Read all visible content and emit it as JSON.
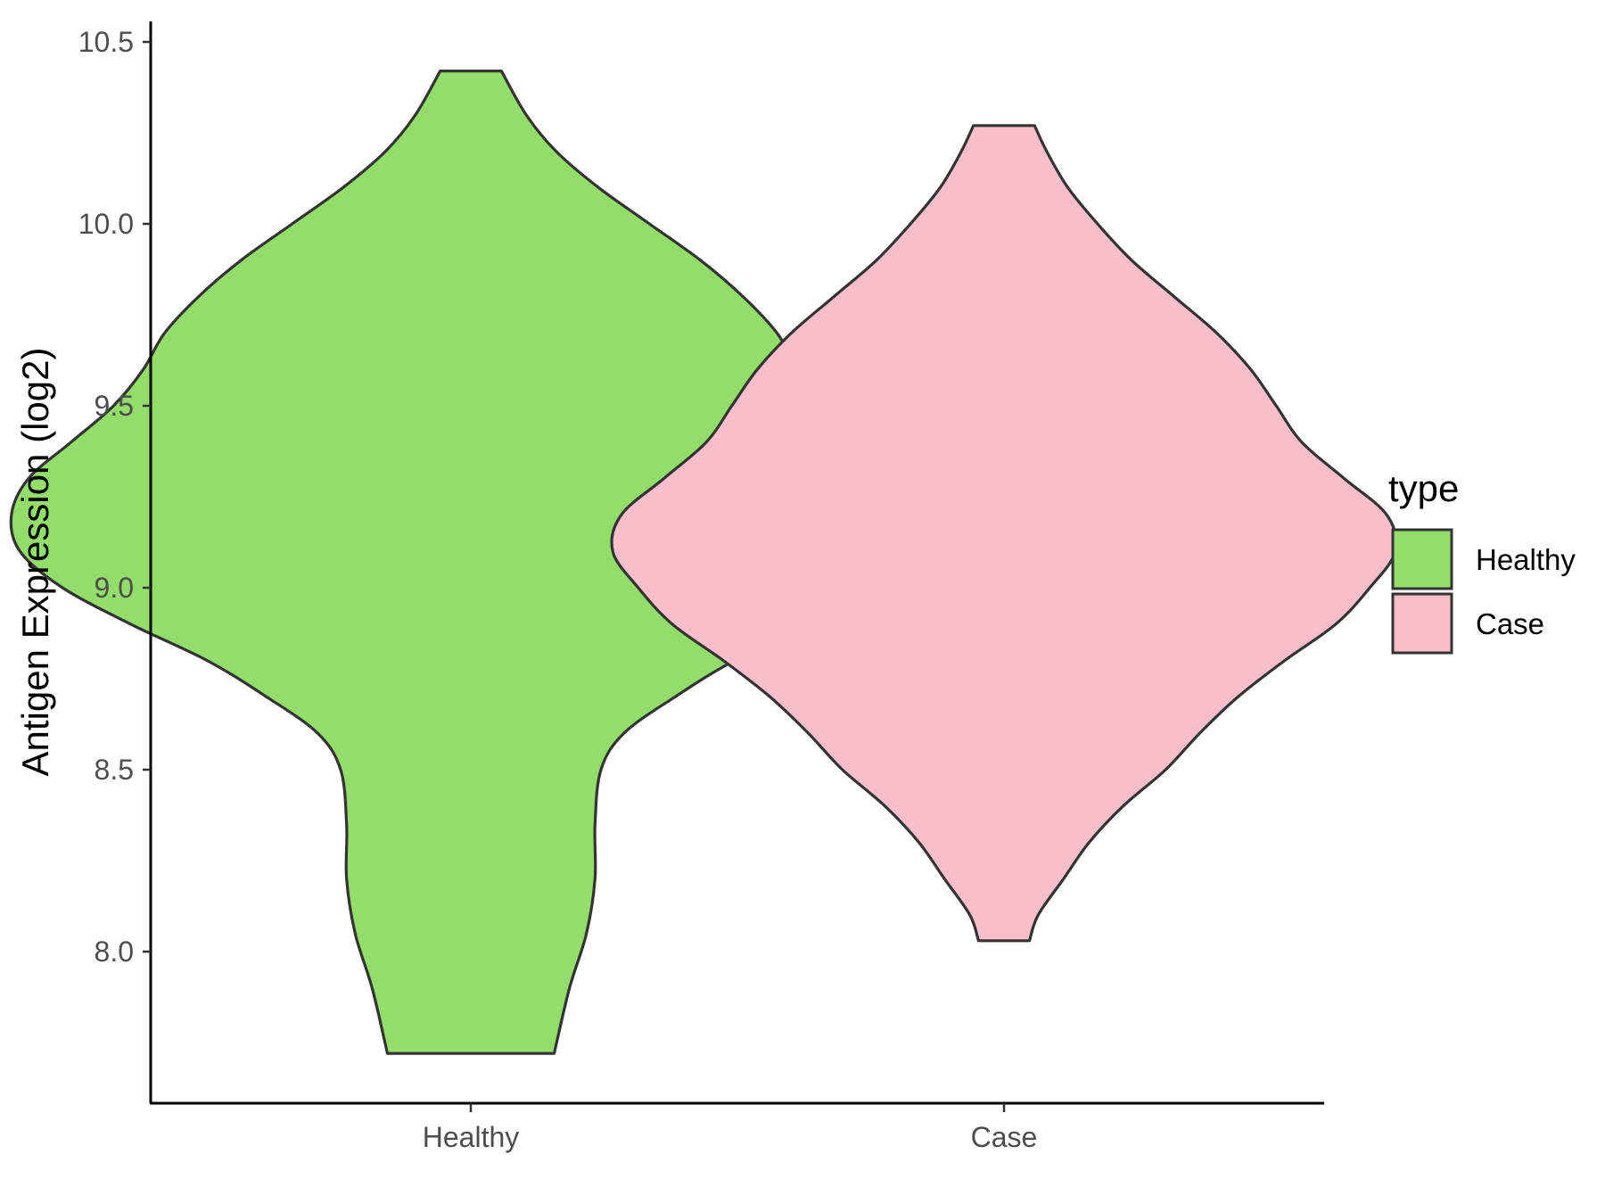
{
  "chart_data": {
    "type": "violin",
    "title": "",
    "xlabel": "",
    "ylabel": "Antigen Expression (log2)",
    "ylim": [
      7.6,
      10.55
    ],
    "yticks": [
      "8.0",
      "8.5",
      "9.0",
      "9.5",
      "10.0",
      "10.5"
    ],
    "grid": false,
    "legend": {
      "title": "type",
      "position": "right",
      "entries": [
        "Healthy",
        "Case"
      ]
    },
    "categories": [
      "Healthy",
      "Case"
    ],
    "series": [
      {
        "name": "Healthy",
        "color": "#93DD6A",
        "min": 7.72,
        "max": 10.42,
        "density_profile": [
          [
            7.72,
            0.098
          ],
          [
            7.9,
            0.116
          ],
          [
            8.05,
            0.136
          ],
          [
            8.2,
            0.146
          ],
          [
            8.35,
            0.146
          ],
          [
            8.5,
            0.153
          ],
          [
            8.6,
            0.18
          ],
          [
            8.7,
            0.24
          ],
          [
            8.8,
            0.31
          ],
          [
            8.9,
            0.4
          ],
          [
            9.0,
            0.48
          ],
          [
            9.1,
            0.53
          ],
          [
            9.2,
            0.54
          ],
          [
            9.3,
            0.52
          ],
          [
            9.4,
            0.47
          ],
          [
            9.5,
            0.42
          ],
          [
            9.6,
            0.385
          ],
          [
            9.7,
            0.36
          ],
          [
            9.8,
            0.32
          ],
          [
            9.9,
            0.27
          ],
          [
            10.0,
            0.21
          ],
          [
            10.1,
            0.15
          ],
          [
            10.2,
            0.1
          ],
          [
            10.3,
            0.065
          ],
          [
            10.42,
            0.036
          ]
        ]
      },
      {
        "name": "Case",
        "color": "#F8BFCB",
        "min": 8.03,
        "max": 10.27,
        "density_profile": [
          [
            8.03,
            0.03
          ],
          [
            8.1,
            0.04
          ],
          [
            8.2,
            0.07
          ],
          [
            8.3,
            0.1
          ],
          [
            8.4,
            0.14
          ],
          [
            8.5,
            0.19
          ],
          [
            8.6,
            0.23
          ],
          [
            8.7,
            0.275
          ],
          [
            8.8,
            0.33
          ],
          [
            8.9,
            0.39
          ],
          [
            9.0,
            0.43
          ],
          [
            9.1,
            0.46
          ],
          [
            9.2,
            0.45
          ],
          [
            9.3,
            0.4
          ],
          [
            9.4,
            0.35
          ],
          [
            9.5,
            0.32
          ],
          [
            9.6,
            0.29
          ],
          [
            9.7,
            0.25
          ],
          [
            9.8,
            0.2
          ],
          [
            9.9,
            0.15
          ],
          [
            10.0,
            0.11
          ],
          [
            10.1,
            0.075
          ],
          [
            10.2,
            0.05
          ],
          [
            10.27,
            0.036
          ]
        ]
      }
    ]
  }
}
